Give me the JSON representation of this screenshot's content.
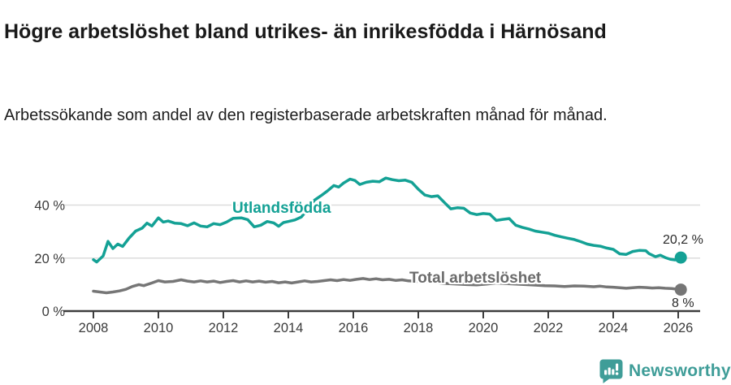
{
  "header": {
    "title": "Högre arbetslöshet bland utrikes- än inrikesfödda i Härnösand",
    "subtitle": "Arbetssökande som andel av den registerbaserade arbetskraften månad för månad."
  },
  "footer": {
    "brand_name": "Newsworthy",
    "brand_color": "#3f9d98",
    "logo_icon": "speech-bubble-bar-chart-icon"
  },
  "colors": {
    "accent_teal": "#14a195",
    "series_gray": "#767676",
    "gridline": "#dddddd",
    "axis": "#3d3d3d",
    "tick_label": "#3a3a3a",
    "title_text": "#1a1a1a"
  },
  "chart_data": {
    "type": "line",
    "title": "Högre arbetslöshet bland utrikes- än inrikesfödda i Härnösand",
    "subtitle": "Arbetssökande som andel av den registerbaserade arbetskraften månad för månad.",
    "ylabel": "",
    "xlabel": "",
    "ylim": [
      0,
      55
    ],
    "xlim": [
      2007.1,
      2026.7
    ],
    "grid": "horizontal",
    "legend_position": "inline-labels",
    "x_ticks": [
      "2008",
      "2010",
      "2012",
      "2014",
      "2016",
      "2018",
      "2020",
      "2022",
      "2024",
      "2026"
    ],
    "y_ticks": [
      {
        "label": "0 %",
        "value": 0
      },
      {
        "label": "20 %",
        "value": 20
      },
      {
        "label": "40 %",
        "value": 40
      }
    ],
    "series": [
      {
        "name": "Utlandsfödda",
        "color": "#14a195",
        "end_label": "20,2 %",
        "end_value": 20.2,
        "points": [
          [
            2008.0,
            19.4
          ],
          [
            2008.1,
            18.5
          ],
          [
            2008.3,
            20.8
          ],
          [
            2008.45,
            26.3
          ],
          [
            2008.6,
            23.6
          ],
          [
            2008.75,
            25.3
          ],
          [
            2008.9,
            24.4
          ],
          [
            2009.1,
            27.6
          ],
          [
            2009.3,
            30.2
          ],
          [
            2009.5,
            31.3
          ],
          [
            2009.65,
            33.2
          ],
          [
            2009.8,
            32.1
          ],
          [
            2010.0,
            35.2
          ],
          [
            2010.15,
            33.6
          ],
          [
            2010.3,
            34.0
          ],
          [
            2010.5,
            33.2
          ],
          [
            2010.7,
            33.0
          ],
          [
            2010.9,
            32.2
          ],
          [
            2011.1,
            33.3
          ],
          [
            2011.3,
            32.1
          ],
          [
            2011.5,
            31.8
          ],
          [
            2011.7,
            33.0
          ],
          [
            2011.9,
            32.6
          ],
          [
            2012.1,
            33.6
          ],
          [
            2012.3,
            35.0
          ],
          [
            2012.55,
            35.2
          ],
          [
            2012.75,
            34.5
          ],
          [
            2012.95,
            31.8
          ],
          [
            2013.15,
            32.4
          ],
          [
            2013.35,
            33.8
          ],
          [
            2013.55,
            33.3
          ],
          [
            2013.7,
            32.0
          ],
          [
            2013.85,
            33.4
          ],
          [
            2014.0,
            33.8
          ],
          [
            2014.2,
            34.4
          ],
          [
            2014.4,
            35.5
          ],
          [
            2014.6,
            38.5
          ],
          [
            2014.8,
            41.8
          ],
          [
            2015.0,
            43.5
          ],
          [
            2015.2,
            45.3
          ],
          [
            2015.4,
            47.4
          ],
          [
            2015.55,
            46.8
          ],
          [
            2015.7,
            48.3
          ],
          [
            2015.9,
            49.8
          ],
          [
            2016.05,
            49.3
          ],
          [
            2016.2,
            47.8
          ],
          [
            2016.4,
            48.6
          ],
          [
            2016.6,
            49.0
          ],
          [
            2016.8,
            48.8
          ],
          [
            2017.0,
            50.2
          ],
          [
            2017.2,
            49.6
          ],
          [
            2017.4,
            49.2
          ],
          [
            2017.6,
            49.4
          ],
          [
            2017.8,
            48.6
          ],
          [
            2018.0,
            46.0
          ],
          [
            2018.2,
            43.8
          ],
          [
            2018.4,
            43.2
          ],
          [
            2018.6,
            43.5
          ],
          [
            2018.8,
            41.0
          ],
          [
            2019.0,
            38.6
          ],
          [
            2019.2,
            39.0
          ],
          [
            2019.4,
            38.8
          ],
          [
            2019.6,
            37.0
          ],
          [
            2019.8,
            36.4
          ],
          [
            2020.0,
            36.8
          ],
          [
            2020.2,
            36.6
          ],
          [
            2020.4,
            34.2
          ],
          [
            2020.6,
            34.6
          ],
          [
            2020.8,
            34.9
          ],
          [
            2021.0,
            32.4
          ],
          [
            2021.2,
            31.6
          ],
          [
            2021.4,
            31.0
          ],
          [
            2021.6,
            30.2
          ],
          [
            2021.8,
            29.8
          ],
          [
            2022.0,
            29.4
          ],
          [
            2022.2,
            28.6
          ],
          [
            2022.4,
            28.0
          ],
          [
            2022.6,
            27.5
          ],
          [
            2022.8,
            27.0
          ],
          [
            2023.0,
            26.2
          ],
          [
            2023.2,
            25.3
          ],
          [
            2023.4,
            24.8
          ],
          [
            2023.6,
            24.5
          ],
          [
            2023.8,
            23.8
          ],
          [
            2024.0,
            23.3
          ],
          [
            2024.2,
            21.6
          ],
          [
            2024.4,
            21.4
          ],
          [
            2024.6,
            22.5
          ],
          [
            2024.8,
            22.9
          ],
          [
            2025.0,
            22.8
          ],
          [
            2025.1,
            21.7
          ],
          [
            2025.3,
            20.5
          ],
          [
            2025.45,
            21.1
          ],
          [
            2025.6,
            20.2
          ],
          [
            2025.75,
            19.6
          ],
          [
            2025.9,
            19.3
          ],
          [
            2026.08,
            20.2
          ]
        ]
      },
      {
        "name": "Total arbetslöshet",
        "color": "#767676",
        "end_label": "8 %",
        "end_value": 8.1,
        "points": [
          [
            2008.0,
            7.5
          ],
          [
            2008.2,
            7.2
          ],
          [
            2008.4,
            6.9
          ],
          [
            2008.6,
            7.2
          ],
          [
            2008.8,
            7.6
          ],
          [
            2009.0,
            8.2
          ],
          [
            2009.2,
            9.3
          ],
          [
            2009.4,
            10.0
          ],
          [
            2009.55,
            9.6
          ],
          [
            2009.8,
            10.6
          ],
          [
            2010.0,
            11.5
          ],
          [
            2010.2,
            11.0
          ],
          [
            2010.45,
            11.2
          ],
          [
            2010.7,
            11.8
          ],
          [
            2010.9,
            11.3
          ],
          [
            2011.1,
            11.0
          ],
          [
            2011.3,
            11.4
          ],
          [
            2011.5,
            11.0
          ],
          [
            2011.7,
            11.3
          ],
          [
            2011.9,
            10.8
          ],
          [
            2012.1,
            11.2
          ],
          [
            2012.3,
            11.5
          ],
          [
            2012.5,
            11.0
          ],
          [
            2012.7,
            11.4
          ],
          [
            2012.9,
            11.0
          ],
          [
            2013.1,
            11.3
          ],
          [
            2013.3,
            10.9
          ],
          [
            2013.5,
            11.2
          ],
          [
            2013.7,
            10.7
          ],
          [
            2013.9,
            11.0
          ],
          [
            2014.1,
            10.6
          ],
          [
            2014.3,
            11.0
          ],
          [
            2014.5,
            11.4
          ],
          [
            2014.7,
            11.0
          ],
          [
            2014.9,
            11.2
          ],
          [
            2015.1,
            11.5
          ],
          [
            2015.3,
            11.8
          ],
          [
            2015.5,
            11.5
          ],
          [
            2015.7,
            11.9
          ],
          [
            2015.9,
            11.6
          ],
          [
            2016.1,
            12.0
          ],
          [
            2016.3,
            12.3
          ],
          [
            2016.5,
            11.9
          ],
          [
            2016.7,
            12.2
          ],
          [
            2016.9,
            11.8
          ],
          [
            2017.1,
            12.0
          ],
          [
            2017.3,
            11.6
          ],
          [
            2017.5,
            11.8
          ],
          [
            2017.7,
            11.4
          ],
          [
            2018.0,
            11.2
          ],
          [
            2018.3,
            10.9
          ],
          [
            2018.6,
            10.7
          ],
          [
            2018.9,
            10.4
          ],
          [
            2019.2,
            10.2
          ],
          [
            2019.5,
            10.0
          ],
          [
            2019.8,
            9.9
          ],
          [
            2020.1,
            10.2
          ],
          [
            2020.4,
            10.6
          ],
          [
            2020.7,
            10.4
          ],
          [
            2021.0,
            10.2
          ],
          [
            2021.3,
            10.0
          ],
          [
            2021.6,
            9.8
          ],
          [
            2021.9,
            9.6
          ],
          [
            2022.2,
            9.5
          ],
          [
            2022.5,
            9.3
          ],
          [
            2022.8,
            9.5
          ],
          [
            2023.1,
            9.4
          ],
          [
            2023.4,
            9.2
          ],
          [
            2023.6,
            9.4
          ],
          [
            2023.8,
            9.1
          ],
          [
            2024.0,
            9.0
          ],
          [
            2024.2,
            8.8
          ],
          [
            2024.4,
            8.6
          ],
          [
            2024.6,
            8.8
          ],
          [
            2024.8,
            9.0
          ],
          [
            2025.0,
            8.9
          ],
          [
            2025.2,
            8.7
          ],
          [
            2025.4,
            8.8
          ],
          [
            2025.6,
            8.6
          ],
          [
            2025.8,
            8.5
          ],
          [
            2026.08,
            8.1
          ]
        ]
      }
    ]
  }
}
